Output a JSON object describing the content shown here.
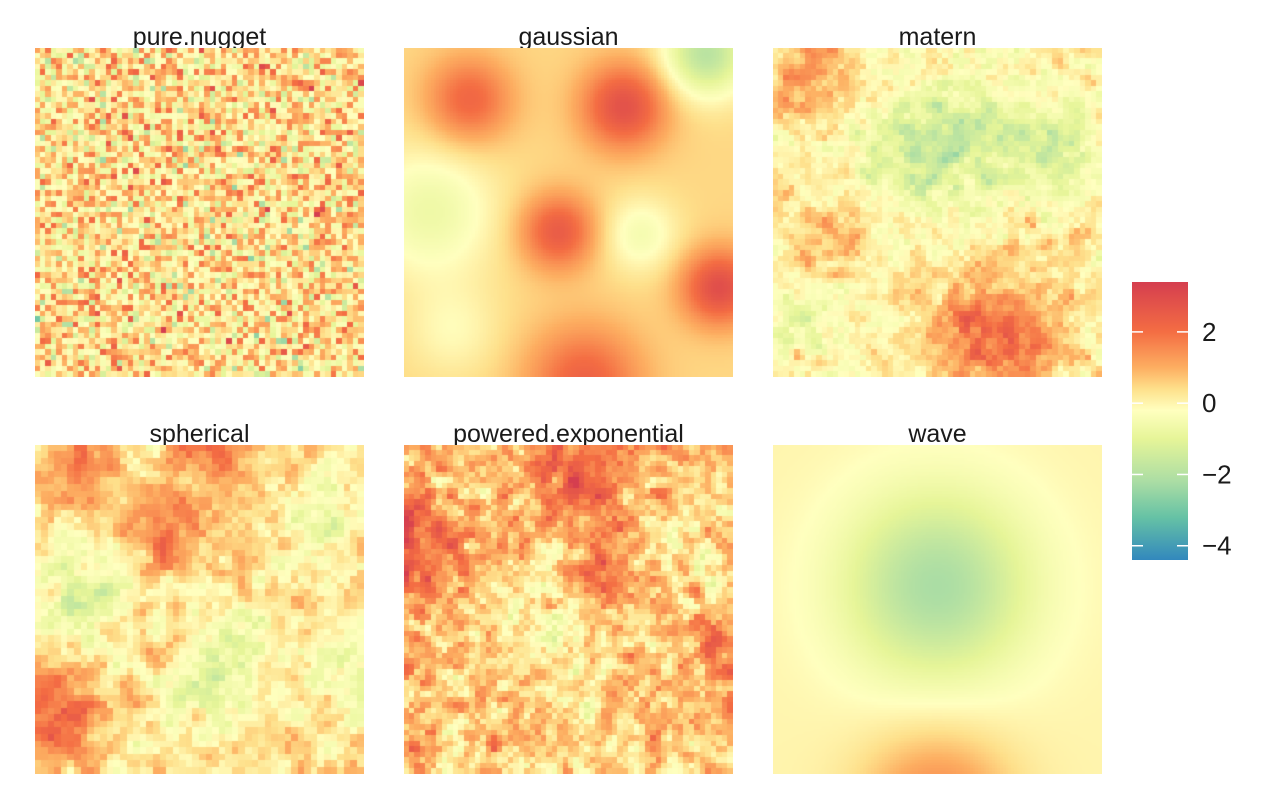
{
  "chart_data": {
    "type": "heatmap",
    "facets": [
      {
        "id": "pure_nugget",
        "title": "pure.nugget",
        "grid": 60,
        "pattern": "noise",
        "mean": 0.3,
        "noise_sd": 0.95
      },
      {
        "id": "gaussian",
        "title": "gaussian",
        "grid": 120,
        "pattern": "smooth",
        "mean": 0.5,
        "noise_sd": 0.0,
        "bumps": [
          {
            "x": 0.2,
            "y": 0.16,
            "amp": 1.7,
            "width": 0.09
          },
          {
            "x": 0.67,
            "y": 0.18,
            "amp": 2.3,
            "width": 0.09
          },
          {
            "x": 0.47,
            "y": 0.56,
            "amp": 2.0,
            "width": 0.08
          },
          {
            "x": 0.96,
            "y": 0.73,
            "amp": 2.4,
            "width": 0.08
          },
          {
            "x": 0.55,
            "y": 1.02,
            "amp": 1.8,
            "width": 0.12
          },
          {
            "x": 0.92,
            "y": 0.02,
            "amp": -2.4,
            "width": 0.09
          },
          {
            "x": 0.08,
            "y": 0.5,
            "amp": -1.2,
            "width": 0.14
          },
          {
            "x": 0.72,
            "y": 0.57,
            "amp": -1.0,
            "width": 0.08
          },
          {
            "x": 0.15,
            "y": 0.86,
            "amp": -0.6,
            "width": 0.1
          }
        ]
      },
      {
        "id": "matern",
        "title": "matern",
        "grid": 60,
        "pattern": "rough",
        "mean": 0.1,
        "noise_sd": 0.32,
        "bumps": [
          {
            "x": 0.47,
            "y": 0.33,
            "amp": -1.4,
            "width": 0.14
          },
          {
            "x": 0.86,
            "y": 0.3,
            "amp": -1.5,
            "width": 0.1
          },
          {
            "x": 0.62,
            "y": 0.22,
            "amp": -0.8,
            "width": 0.1
          },
          {
            "x": 0.1,
            "y": 0.82,
            "amp": -0.9,
            "width": 0.12
          },
          {
            "x": 0.68,
            "y": 0.88,
            "amp": 2.0,
            "width": 0.12
          },
          {
            "x": 0.1,
            "y": 0.08,
            "amp": 1.2,
            "width": 0.1
          },
          {
            "x": 0.15,
            "y": 0.62,
            "amp": 0.9,
            "width": 0.1
          }
        ]
      },
      {
        "id": "spherical",
        "title": "spherical",
        "grid": 50,
        "pattern": "rough",
        "mean": 0.3,
        "noise_sd": 0.35,
        "bumps": [
          {
            "x": 0.05,
            "y": 0.82,
            "amp": 2.0,
            "width": 0.09
          },
          {
            "x": 0.4,
            "y": 0.25,
            "amp": 1.4,
            "width": 0.09
          },
          {
            "x": 0.55,
            "y": 0.02,
            "amp": 1.5,
            "width": 0.08
          },
          {
            "x": 0.12,
            "y": 0.05,
            "amp": 1.0,
            "width": 0.1
          },
          {
            "x": 0.15,
            "y": 0.46,
            "amp": -1.6,
            "width": 0.09
          },
          {
            "x": 0.62,
            "y": 0.65,
            "amp": -1.3,
            "width": 0.09
          },
          {
            "x": 0.88,
            "y": 0.21,
            "amp": -1.2,
            "width": 0.08
          },
          {
            "x": 0.96,
            "y": 0.68,
            "amp": -1.1,
            "width": 0.09
          },
          {
            "x": 0.5,
            "y": 0.76,
            "amp": -0.9,
            "width": 0.08
          }
        ]
      },
      {
        "id": "powered_exponential",
        "title": "powered.exponential",
        "grid": 60,
        "pattern": "rough",
        "mean": 0.6,
        "noise_sd": 0.5,
        "bumps": [
          {
            "x": 0.55,
            "y": 0.05,
            "amp": 1.6,
            "width": 0.14
          },
          {
            "x": 0.02,
            "y": 0.3,
            "amp": 1.8,
            "width": 0.12
          },
          {
            "x": 0.6,
            "y": 0.4,
            "amp": 1.3,
            "width": 0.08
          },
          {
            "x": 0.95,
            "y": 0.65,
            "amp": 1.2,
            "width": 0.08
          },
          {
            "x": 0.45,
            "y": 0.52,
            "amp": -1.0,
            "width": 0.1
          },
          {
            "x": 0.8,
            "y": 0.28,
            "amp": -0.6,
            "width": 0.1
          }
        ]
      },
      {
        "id": "wave",
        "title": "wave",
        "grid": 120,
        "pattern": "smooth",
        "mean": 0.0,
        "noise_sd": 0.0,
        "bumps": [
          {
            "x": 0.5,
            "y": 0.43,
            "amp": -2.2,
            "width": 0.2
          },
          {
            "x": 0.5,
            "y": 1.1,
            "amp": 1.6,
            "width": 0.16
          }
        ]
      }
    ],
    "color_scale": {
      "name": "Spectral",
      "domain": [
        -4.4,
        3.4
      ],
      "stops": [
        {
          "value": 3.4,
          "color": "#d53e4f"
        },
        {
          "value": 2.0,
          "color": "#f46d43"
        },
        {
          "value": 1.0,
          "color": "#fdae61"
        },
        {
          "value": 0.4,
          "color": "#fee08b"
        },
        {
          "value": -0.2,
          "color": "#ffffbf"
        },
        {
          "value": -1.0,
          "color": "#e6f598"
        },
        {
          "value": -2.2,
          "color": "#abdda4"
        },
        {
          "value": -3.2,
          "color": "#66c2a5"
        },
        {
          "value": -4.4,
          "color": "#3288bd"
        }
      ]
    },
    "legend": {
      "placement": "right",
      "ticks": [
        {
          "value": 2,
          "label": "2"
        },
        {
          "value": 0,
          "label": "0"
        },
        {
          "value": -2,
          "label": "−2"
        },
        {
          "value": -4,
          "label": "−4"
        }
      ]
    }
  }
}
